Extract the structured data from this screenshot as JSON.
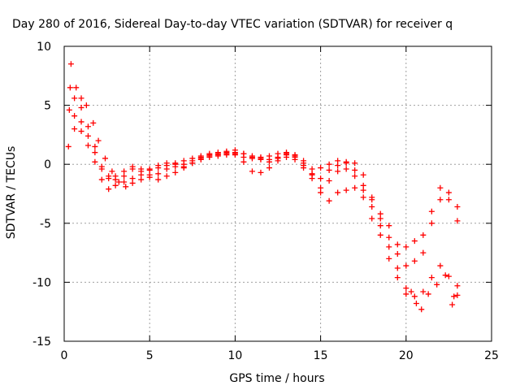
{
  "chart_data": {
    "type": "scatter",
    "title": "Day 280 of 2016, Sidereal Day-to-day VTEC variation (SDTVAR) for receiver q",
    "xlabel": "GPS time / hours",
    "ylabel": "SDTVAR / TECUs",
    "xlim": [
      0,
      25
    ],
    "ylim": [
      -15,
      10
    ],
    "xticks": [
      0,
      5,
      10,
      15,
      20,
      25
    ],
    "yticks": [
      -15,
      -10,
      -5,
      0,
      5,
      10
    ],
    "grid": true,
    "marker": "+",
    "color": "#ff0000",
    "series": [
      {
        "points": [
          [
            0.35,
            6.5
          ],
          [
            0.6,
            5.6
          ],
          [
            1.0,
            4.8
          ],
          [
            1.4,
            3.2
          ],
          [
            1.8,
            1.5
          ],
          [
            2.2,
            -0.2
          ],
          [
            2.6,
            -1.0
          ],
          [
            3.0,
            -1.3
          ],
          [
            3.5,
            -1.5
          ],
          [
            4.0,
            -1.2
          ],
          [
            4.5,
            -0.9
          ],
          [
            5.0,
            -0.9
          ],
          [
            5.5,
            -0.8
          ],
          [
            6.0,
            -0.4
          ],
          [
            6.5,
            -0.2
          ],
          [
            7.0,
            0.0
          ],
          [
            7.5,
            0.3
          ],
          [
            8.0,
            0.6
          ],
          [
            8.5,
            0.7
          ],
          [
            9.0,
            0.8
          ],
          [
            9.5,
            0.9
          ],
          [
            10.0,
            0.8
          ],
          [
            10.5,
            0.6
          ],
          [
            11.0,
            0.5
          ],
          [
            11.5,
            0.6
          ],
          [
            12.0,
            0.7
          ],
          [
            12.5,
            0.9
          ],
          [
            13.0,
            0.8
          ],
          [
            13.5,
            0.6
          ],
          [
            14.0,
            0.1
          ],
          [
            14.5,
            -0.4
          ],
          [
            15.0,
            -0.3
          ],
          [
            15.5,
            0.0
          ],
          [
            16.0,
            -0.1
          ],
          [
            16.5,
            -0.4
          ],
          [
            17.0,
            -1.0
          ],
          [
            17.5,
            -2.2
          ],
          [
            18.0,
            -3.6
          ],
          [
            18.5,
            -5.2
          ],
          [
            19.0,
            -7.0
          ],
          [
            19.5,
            -8.8
          ],
          [
            20.0,
            -10.5
          ],
          [
            20.5,
            -11.2
          ],
          [
            21.0,
            -10.8
          ],
          [
            21.5,
            -9.6
          ],
          [
            22.0,
            -8.6
          ],
          [
            22.5,
            -9.5
          ],
          [
            22.8,
            -11.2
          ],
          [
            23.0,
            -10.3
          ]
        ]
      },
      {
        "points": [
          [
            0.4,
            8.5
          ],
          [
            0.7,
            6.5
          ],
          [
            1.0,
            5.6
          ],
          [
            1.3,
            5.0
          ],
          [
            1.7,
            3.5
          ],
          [
            2.0,
            2.0
          ],
          [
            2.4,
            0.5
          ],
          [
            2.8,
            -0.6
          ],
          [
            3.2,
            -1.5
          ],
          [
            3.6,
            -1.9
          ],
          [
            4.0,
            -1.6
          ],
          [
            4.5,
            -1.3
          ],
          [
            5.0,
            -1.1
          ],
          [
            5.5,
            -1.3
          ],
          [
            6.0,
            -1.0
          ],
          [
            6.5,
            -0.7
          ],
          [
            7.0,
            -0.3
          ],
          [
            7.5,
            0.1
          ],
          [
            8.0,
            0.4
          ],
          [
            8.5,
            0.6
          ],
          [
            9.0,
            0.7
          ],
          [
            9.5,
            0.8
          ],
          [
            10.0,
            1.0
          ],
          [
            10.5,
            0.9
          ],
          [
            11.0,
            0.6
          ],
          [
            11.5,
            0.5
          ],
          [
            12.0,
            0.4
          ],
          [
            12.5,
            0.6
          ],
          [
            13.0,
            0.9
          ],
          [
            13.5,
            0.7
          ],
          [
            14.0,
            0.3
          ],
          [
            14.5,
            -0.8
          ],
          [
            15.0,
            -2.0
          ],
          [
            15.5,
            -3.1
          ],
          [
            16.0,
            -2.4
          ],
          [
            16.5,
            -2.2
          ],
          [
            17.0,
            -2.0
          ],
          [
            17.5,
            -2.8
          ],
          [
            18.0,
            -4.6
          ],
          [
            18.5,
            -6.0
          ],
          [
            19.0,
            -8.0
          ],
          [
            19.5,
            -9.6
          ],
          [
            20.0,
            -11.0
          ],
          [
            20.3,
            -10.8
          ],
          [
            20.6,
            -11.8
          ],
          [
            20.9,
            -12.3
          ],
          [
            21.3,
            -11.0
          ],
          [
            21.8,
            -10.2
          ],
          [
            22.3,
            -9.4
          ],
          [
            22.7,
            -11.9
          ],
          [
            23.0,
            -11.1
          ]
        ]
      },
      {
        "points": [
          [
            0.25,
            1.5
          ],
          [
            0.6,
            3.0
          ],
          [
            1.0,
            2.8
          ],
          [
            1.4,
            1.6
          ],
          [
            1.8,
            0.2
          ],
          [
            2.2,
            -1.3
          ],
          [
            2.6,
            -2.1
          ],
          [
            3.0,
            -1.8
          ],
          [
            3.5,
            -1.0
          ],
          [
            4.0,
            -0.4
          ],
          [
            4.5,
            -0.6
          ],
          [
            5.0,
            -0.4
          ],
          [
            5.5,
            -0.1
          ],
          [
            6.0,
            0.1
          ],
          [
            6.5,
            0.0
          ],
          [
            7.0,
            -0.2
          ],
          [
            7.5,
            0.1
          ],
          [
            8.0,
            0.5
          ],
          [
            8.5,
            0.8
          ],
          [
            9.0,
            0.9
          ],
          [
            9.5,
            1.0
          ],
          [
            10.0,
            0.9
          ],
          [
            10.5,
            0.2
          ],
          [
            11.0,
            -0.6
          ],
          [
            11.5,
            -0.7
          ],
          [
            12.0,
            -0.3
          ],
          [
            12.5,
            0.5
          ],
          [
            13.0,
            1.0
          ],
          [
            13.5,
            0.8
          ],
          [
            14.0,
            -0.1
          ],
          [
            14.5,
            -1.2
          ],
          [
            15.0,
            -2.4
          ],
          [
            15.5,
            -1.4
          ],
          [
            16.0,
            -0.6
          ],
          [
            16.5,
            0.2
          ],
          [
            17.0,
            0.1
          ],
          [
            17.5,
            -0.9
          ],
          [
            18.0,
            -2.8
          ],
          [
            18.5,
            -4.6
          ],
          [
            19.0,
            -6.2
          ],
          [
            19.5,
            -7.6
          ],
          [
            20.0,
            -8.6
          ],
          [
            20.5,
            -8.2
          ],
          [
            21.0,
            -7.5
          ],
          [
            21.5,
            -5.0
          ],
          [
            22.0,
            -3.0
          ],
          [
            22.5,
            -2.4
          ],
          [
            23.0,
            -3.6
          ]
        ]
      },
      {
        "points": [
          [
            0.3,
            4.6
          ],
          [
            0.6,
            4.1
          ],
          [
            1.0,
            3.6
          ],
          [
            1.4,
            2.4
          ],
          [
            1.8,
            1.0
          ],
          [
            2.2,
            -0.4
          ],
          [
            2.6,
            -1.2
          ],
          [
            3.0,
            -1.0
          ],
          [
            3.5,
            -0.6
          ],
          [
            4.0,
            -0.2
          ],
          [
            4.5,
            -0.4
          ],
          [
            5.0,
            -0.5
          ],
          [
            5.5,
            -0.3
          ],
          [
            6.0,
            -0.1
          ],
          [
            6.5,
            0.1
          ],
          [
            7.0,
            0.3
          ],
          [
            7.5,
            0.5
          ],
          [
            8.0,
            0.7
          ],
          [
            8.5,
            0.9
          ],
          [
            9.0,
            1.0
          ],
          [
            9.5,
            1.1
          ],
          [
            10.0,
            1.2
          ],
          [
            10.5,
            0.9
          ],
          [
            11.0,
            0.7
          ],
          [
            11.5,
            0.4
          ],
          [
            12.0,
            0.2
          ],
          [
            12.5,
            0.3
          ],
          [
            13.0,
            0.6
          ],
          [
            13.5,
            0.4
          ],
          [
            14.0,
            -0.3
          ],
          [
            14.5,
            -0.9
          ],
          [
            15.0,
            -1.2
          ],
          [
            15.5,
            -0.5
          ],
          [
            16.0,
            0.3
          ],
          [
            16.5,
            0.1
          ],
          [
            17.0,
            -0.5
          ],
          [
            17.5,
            -1.8
          ],
          [
            18.0,
            -3.0
          ],
          [
            18.5,
            -4.2
          ],
          [
            19.0,
            -5.2
          ],
          [
            19.5,
            -6.8
          ],
          [
            20.0,
            -7.0
          ],
          [
            20.5,
            -6.5
          ],
          [
            21.0,
            -6.0
          ],
          [
            21.5,
            -4.0
          ],
          [
            22.0,
            -2.0
          ],
          [
            22.5,
            -3.0
          ],
          [
            23.0,
            -4.8
          ]
        ]
      }
    ]
  }
}
